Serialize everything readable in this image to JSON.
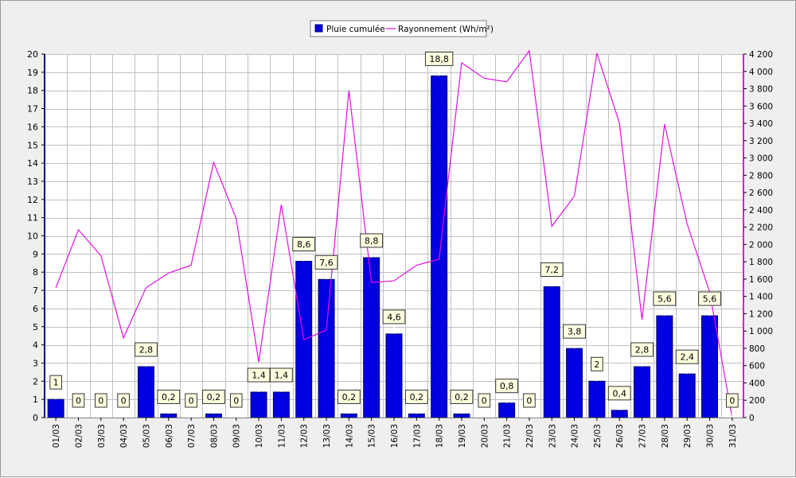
{
  "colors": {
    "background": "#efefef",
    "plot_background": "#ffffff",
    "grid": "#c0c0c0",
    "bar_fill": "#0000e0",
    "bar_edge": "#000070",
    "line": "#e010e0",
    "left_axis": "#000080",
    "right_axis": "#e010e0",
    "label_box": "#ffffe0"
  },
  "legend": {
    "items": [
      {
        "label": "Pluie cumulée",
        "icon": "blue-square-swatch"
      },
      {
        "label": "Rayonnement (Wh/m²)",
        "icon": "magenta-line-swatch"
      }
    ]
  },
  "chart_data": {
    "type": "bar",
    "title": "",
    "grid": true,
    "legend_position": "top-center",
    "categories": [
      "01/03",
      "02/03",
      "03/03",
      "04/03",
      "05/03",
      "06/03",
      "07/03",
      "08/03",
      "09/03",
      "10/03",
      "11/03",
      "12/03",
      "13/03",
      "14/03",
      "15/03",
      "16/03",
      "17/03",
      "18/03",
      "19/03",
      "20/03",
      "21/03",
      "22/03",
      "23/03",
      "24/03",
      "25/03",
      "26/03",
      "27/03",
      "28/03",
      "29/03",
      "30/03",
      "31/03"
    ],
    "series": [
      {
        "name": "Pluie cumulée",
        "type": "bar",
        "axis": "left",
        "values": [
          1,
          0,
          0,
          0,
          2.8,
          0.2,
          0,
          0.2,
          0,
          1.4,
          1.4,
          8.6,
          7.6,
          0.2,
          8.8,
          4.6,
          0.2,
          18.8,
          0.2,
          0,
          0.8,
          0,
          7.2,
          3.8,
          2,
          0.4,
          2.8,
          5.6,
          2.4,
          5.6,
          0
        ],
        "labels": [
          "1",
          "0",
          "0",
          "0",
          "2,8",
          "0,2",
          "0",
          "0,2",
          "0",
          "1,4",
          "1,4",
          "8,6",
          "7,6",
          "0,2",
          "8,8",
          "4,6",
          "0,2",
          "18,8",
          "0,2",
          "0",
          "0,8",
          "0",
          "7,2",
          "3,8",
          "2",
          "0,4",
          "2,8",
          "5,6",
          "2,4",
          "5,6",
          "0"
        ]
      },
      {
        "name": "Rayonnement (Wh/m²)",
        "type": "line",
        "axis": "right",
        "values": [
          1500,
          2170,
          1870,
          920,
          1500,
          1670,
          1760,
          2950,
          2300,
          640,
          2460,
          900,
          1010,
          3780,
          1560,
          1580,
          1760,
          1830,
          4100,
          3920,
          3880,
          4240,
          2210,
          2560,
          4210,
          3400,
          1130,
          3390,
          2240,
          1450,
          0
        ]
      }
    ],
    "left_axis": {
      "ylim": [
        0,
        20
      ],
      "ticks": [
        "0",
        "1",
        "2",
        "3",
        "4",
        "5",
        "6",
        "7",
        "8",
        "9",
        "10",
        "11",
        "12",
        "13",
        "14",
        "15",
        "16",
        "17",
        "18",
        "19",
        "20"
      ]
    },
    "right_axis": {
      "ylim": [
        0,
        4200
      ],
      "ticks": [
        "0",
        "200",
        "400",
        "600",
        "800",
        "1 000",
        "1 200",
        "1 400",
        "1 600",
        "1 800",
        "2 000",
        "2 200",
        "2 400",
        "2 600",
        "2 800",
        "3 000",
        "3 200",
        "3 400",
        "3 600",
        "3 800",
        "4 000",
        "4 200"
      ]
    }
  }
}
